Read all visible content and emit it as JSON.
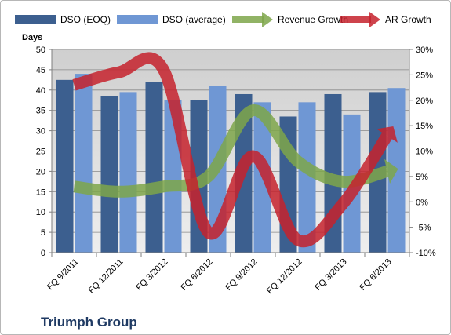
{
  "chart_data": {
    "type": "bar",
    "title": "Triumph Group",
    "ylabel": "Days",
    "xlabel": "",
    "categories": [
      "FQ 9/2011",
      "FQ 12/2011",
      "FQ 3/2012",
      "FQ 6/2012",
      "FQ 9/2012",
      "FQ 12/2012",
      "FQ 3/2013",
      "FQ 6/2013"
    ],
    "ylim": [
      0,
      50
    ],
    "y_ticks": [
      "0",
      "5",
      "10",
      "15",
      "20",
      "25",
      "30",
      "35",
      "40",
      "45",
      "50"
    ],
    "y2lim": [
      -10,
      30
    ],
    "y2_ticks": [
      "-10%",
      "-5%",
      "0%",
      "5%",
      "10%",
      "15%",
      "20%",
      "25%",
      "30%"
    ],
    "grid": true,
    "legend_position": "top",
    "series": [
      {
        "name": "DSO (EOQ)",
        "type": "bar",
        "axis": "left",
        "color": "#3c5f8f",
        "values": [
          42.5,
          38.5,
          42,
          37.5,
          39,
          33.5,
          39,
          39.5
        ]
      },
      {
        "name": "DSO (average)",
        "type": "bar",
        "axis": "left",
        "color": "#6f97d4",
        "values": [
          44,
          39.5,
          37.5,
          41,
          37,
          37,
          34,
          40.5
        ]
      },
      {
        "name": "Revenue Growth",
        "type": "line",
        "axis": "right",
        "color": "#7ea64a",
        "values": [
          3,
          2,
          3,
          5,
          18,
          8,
          4,
          6
        ]
      },
      {
        "name": "AR Growth",
        "type": "line",
        "axis": "right",
        "color": "#c5222d",
        "values": [
          23,
          25.5,
          26,
          -6,
          9,
          -7.5,
          -0.5,
          13
        ]
      }
    ]
  }
}
